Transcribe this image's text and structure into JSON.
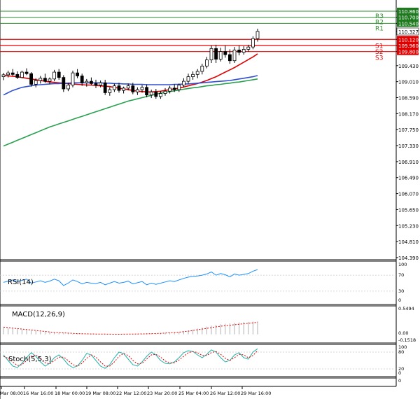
{
  "chart_data": {
    "type": "candlestick",
    "price_axis": {
      "ylim": [
        104.39,
        110.86
      ],
      "ticks": [
        "110.860",
        "110.700",
        "110.540",
        "110.327",
        "110.120",
        "109.960",
        "109.800",
        "109.430",
        "109.010",
        "108.590",
        "108.170",
        "107.750",
        "107.330",
        "106.910",
        "106.490",
        "106.070",
        "105.650",
        "105.230",
        "104.810",
        "104.390"
      ]
    },
    "current_price": "110.327",
    "levels": {
      "resistance": [
        {
          "label": "R3",
          "value": 110.86,
          "text": "110.860"
        },
        {
          "label": "R2",
          "value": 110.7,
          "text": "110.700"
        },
        {
          "label": "R1",
          "value": 110.54,
          "text": "110.540"
        }
      ],
      "support": [
        {
          "label": "S1",
          "value": 110.12,
          "text": "110.120"
        },
        {
          "label": "S2",
          "value": 109.96,
          "text": "109.960"
        },
        {
          "label": "S3",
          "value": 109.8,
          "text": "109.800"
        }
      ]
    },
    "time_labels": [
      "Mar 08:00",
      "16 Mar 16:00",
      "18 Mar 00:00",
      "19 Mar 08:00",
      "22 Mar 12:00",
      "23 Mar 20:00",
      "25 Mar 04:00",
      "26 Mar 12:00",
      "29 Mar 16:00"
    ],
    "candles": [
      [
        109.14,
        109.24,
        109.05,
        109.19
      ],
      [
        109.19,
        109.3,
        109.12,
        109.24
      ],
      [
        109.24,
        109.34,
        109.16,
        109.2
      ],
      [
        109.2,
        109.28,
        109.08,
        109.12
      ],
      [
        109.12,
        109.3,
        109.1,
        109.26
      ],
      [
        109.26,
        109.36,
        109.18,
        109.22
      ],
      [
        109.22,
        109.26,
        108.88,
        108.94
      ],
      [
        108.94,
        109.1,
        108.86,
        109.04
      ],
      [
        109.04,
        109.16,
        108.96,
        109.1
      ],
      [
        109.1,
        109.22,
        108.98,
        109.02
      ],
      [
        109.02,
        109.12,
        108.94,
        109.08
      ],
      [
        109.08,
        109.32,
        109.02,
        109.26
      ],
      [
        109.26,
        109.34,
        109.06,
        109.12
      ],
      [
        109.12,
        109.18,
        108.74,
        108.82
      ],
      [
        108.82,
        108.98,
        108.76,
        108.92
      ],
      [
        108.92,
        109.3,
        108.86,
        109.24
      ],
      [
        109.24,
        109.34,
        109.1,
        109.16
      ],
      [
        109.16,
        109.22,
        108.9,
        108.98
      ],
      [
        108.98,
        109.08,
        108.88,
        109.02
      ],
      [
        109.02,
        109.12,
        108.92,
        108.96
      ],
      [
        108.96,
        109.06,
        108.84,
        108.92
      ],
      [
        108.92,
        109.04,
        108.86,
        108.98
      ],
      [
        108.98,
        109.06,
        108.66,
        108.72
      ],
      [
        108.72,
        108.86,
        108.64,
        108.8
      ],
      [
        108.8,
        108.96,
        108.74,
        108.9
      ],
      [
        108.9,
        108.98,
        108.72,
        108.78
      ],
      [
        108.78,
        108.88,
        108.7,
        108.84
      ],
      [
        108.84,
        108.96,
        108.78,
        108.9
      ],
      [
        108.9,
        108.98,
        108.68,
        108.74
      ],
      [
        108.74,
        108.86,
        108.66,
        108.8
      ],
      [
        108.8,
        108.92,
        108.72,
        108.86
      ],
      [
        108.86,
        108.94,
        108.6,
        108.66
      ],
      [
        108.66,
        108.8,
        108.58,
        108.74
      ],
      [
        108.74,
        108.82,
        108.56,
        108.62
      ],
      [
        108.62,
        108.76,
        108.56,
        108.7
      ],
      [
        108.7,
        108.84,
        108.64,
        108.76
      ],
      [
        108.76,
        108.9,
        108.7,
        108.84
      ],
      [
        108.84,
        108.94,
        108.74,
        108.8
      ],
      [
        108.8,
        108.96,
        108.74,
        108.92
      ],
      [
        108.92,
        109.1,
        108.86,
        109.02
      ],
      [
        109.02,
        109.22,
        108.96,
        109.14
      ],
      [
        109.14,
        109.28,
        109.06,
        109.2
      ],
      [
        109.2,
        109.34,
        109.1,
        109.28
      ],
      [
        109.28,
        109.48,
        109.2,
        109.42
      ],
      [
        109.42,
        109.66,
        109.36,
        109.58
      ],
      [
        109.58,
        109.96,
        109.5,
        109.88
      ],
      [
        109.88,
        109.98,
        109.5,
        109.6
      ],
      [
        109.6,
        109.9,
        109.54,
        109.8
      ],
      [
        109.8,
        109.96,
        109.64,
        109.72
      ],
      [
        109.72,
        109.86,
        109.48,
        109.56
      ],
      [
        109.56,
        109.92,
        109.5,
        109.84
      ],
      [
        109.84,
        109.96,
        109.7,
        109.78
      ],
      [
        109.78,
        109.94,
        109.72,
        109.86
      ],
      [
        109.86,
        109.98,
        109.8,
        109.92
      ],
      [
        109.92,
        110.2,
        109.86,
        110.14
      ],
      [
        110.14,
        110.4,
        110.06,
        110.33
      ]
    ],
    "series": [
      {
        "name": "",
        "color": "#e00000",
        "values": [
          109.18,
          109.16,
          109.15,
          109.14,
          109.12,
          109.1,
          109.08,
          109.06,
          109.04,
          109.02,
          109.0,
          108.99,
          108.98,
          108.97,
          108.96,
          108.95,
          108.94,
          108.93,
          108.92,
          108.92,
          108.91,
          108.9,
          108.89,
          108.88,
          108.86,
          108.84,
          108.82,
          108.8,
          108.78,
          108.76,
          108.75,
          108.74,
          108.74,
          108.75,
          108.76,
          108.78,
          108.8,
          108.82,
          108.84,
          108.87,
          108.9,
          108.93,
          108.96,
          109.0,
          109.04,
          109.09,
          109.14,
          109.2,
          109.26,
          109.32,
          109.38,
          109.45,
          109.52,
          109.59,
          109.66,
          109.74
        ]
      },
      {
        "name": "",
        "color": "#3050d0",
        "values": [
          108.66,
          108.72,
          108.78,
          108.82,
          108.86,
          108.88,
          108.9,
          108.92,
          108.93,
          108.94,
          108.95,
          108.96,
          108.96,
          108.97,
          108.97,
          108.98,
          108.98,
          108.98,
          108.98,
          108.98,
          108.98,
          108.98,
          108.97,
          108.97,
          108.96,
          108.96,
          108.95,
          108.95,
          108.94,
          108.94,
          108.94,
          108.93,
          108.93,
          108.93,
          108.93,
          108.93,
          108.93,
          108.94,
          108.94,
          108.95,
          108.95,
          108.96,
          108.97,
          108.98,
          108.99,
          109.0,
          109.01,
          109.02,
          109.03,
          109.04,
          109.06,
          109.08,
          109.1,
          109.12,
          109.14,
          109.17
        ]
      },
      {
        "name": "",
        "color": "#2aa050",
        "values": [
          107.32,
          107.37,
          107.42,
          107.47,
          107.52,
          107.57,
          107.62,
          107.67,
          107.72,
          107.77,
          107.82,
          107.86,
          107.9,
          107.94,
          107.98,
          108.02,
          108.06,
          108.1,
          108.14,
          108.18,
          108.22,
          108.26,
          108.3,
          108.34,
          108.38,
          108.42,
          108.46,
          108.5,
          108.53,
          108.56,
          108.59,
          108.62,
          108.65,
          108.68,
          108.71,
          108.73,
          108.75,
          108.77,
          108.79,
          108.81,
          108.83,
          108.85,
          108.86,
          108.88,
          108.9,
          108.91,
          108.93,
          108.94,
          108.96,
          108.97,
          108.99,
          109.0,
          109.02,
          109.04,
          109.06,
          109.08
        ]
      }
    ],
    "rsi": {
      "label": "RSI(14)",
      "ylim": [
        0,
        100
      ],
      "ticks": [
        "100",
        "70",
        "30",
        "0"
      ],
      "values": [
        52,
        55,
        58,
        54,
        57,
        60,
        50,
        53,
        56,
        52,
        55,
        60,
        56,
        44,
        50,
        58,
        54,
        48,
        52,
        50,
        49,
        52,
        46,
        50,
        54,
        50,
        52,
        55,
        48,
        51,
        54,
        46,
        50,
        47,
        50,
        53,
        56,
        54,
        58,
        62,
        65,
        67,
        68,
        70,
        73,
        78,
        70,
        74,
        71,
        66,
        73,
        70,
        72,
        74,
        80,
        84
      ]
    },
    "macd": {
      "label": "MACD(12,26,9)",
      "ticks": [
        "0.5494",
        "0.00",
        "-0.1518"
      ],
      "ylim": [
        -0.1518,
        0.5494
      ],
      "histogram": [
        0.14,
        0.13,
        0.12,
        0.11,
        0.1,
        0.09,
        0.08,
        0.07,
        0.06,
        0.05,
        0.04,
        0.035,
        0.03,
        0.02,
        0.015,
        0.012,
        0.01,
        0.008,
        0.006,
        0.005,
        0.004,
        0.003,
        0.002,
        0.001,
        0.001,
        0.001,
        0.002,
        0.003,
        0.004,
        0.006,
        0.008,
        0.01,
        0.012,
        0.015,
        0.02,
        0.025,
        0.03,
        0.04,
        0.05,
        0.06,
        0.08,
        0.1,
        0.12,
        0.14,
        0.16,
        0.18,
        0.2,
        0.21,
        0.22,
        0.23,
        0.24,
        0.25,
        0.255,
        0.26,
        0.265,
        0.27
      ],
      "signal": [
        0.15,
        0.14,
        0.13,
        0.12,
        0.11,
        0.1,
        0.09,
        0.08,
        0.07,
        0.06,
        0.05,
        0.04,
        0.035,
        0.03,
        0.025,
        0.02,
        0.015,
        0.012,
        0.01,
        0.008,
        0.006,
        0.005,
        0.004,
        0.003,
        0.002,
        0.002,
        0.003,
        0.004,
        0.005,
        0.007,
        0.009,
        0.011,
        0.014,
        0.017,
        0.021,
        0.026,
        0.032,
        0.038,
        0.046,
        0.055,
        0.066,
        0.08,
        0.095,
        0.11,
        0.125,
        0.14,
        0.155,
        0.17,
        0.18,
        0.19,
        0.2,
        0.21,
        0.22,
        0.23,
        0.24,
        0.25
      ]
    },
    "stoch": {
      "label": "Stoch(5,5,3)",
      "ylim": [
        0,
        100
      ],
      "ticks": [
        "100",
        "80",
        "20",
        "0"
      ],
      "main": [
        70,
        50,
        30,
        25,
        40,
        60,
        78,
        65,
        45,
        30,
        40,
        60,
        70,
        55,
        35,
        25,
        30,
        50,
        75,
        70,
        50,
        30,
        22,
        35,
        60,
        80,
        75,
        55,
        35,
        30,
        45,
        65,
        80,
        70,
        50,
        40,
        38,
        45,
        60,
        78,
        85,
        82,
        70,
        60,
        72,
        88,
        80,
        60,
        45,
        50,
        70,
        78,
        60,
        55,
        80,
        92
      ],
      "signal": [
        65,
        58,
        45,
        32,
        35,
        50,
        65,
        70,
        58,
        42,
        38,
        50,
        62,
        62,
        50,
        35,
        30,
        40,
        58,
        70,
        62,
        45,
        30,
        30,
        45,
        65,
        75,
        68,
        50,
        38,
        40,
        55,
        70,
        72,
        62,
        48,
        42,
        42,
        52,
        65,
        78,
        82,
        78,
        68,
        68,
        78,
        82,
        72,
        58,
        50,
        60,
        72,
        70,
        60,
        68,
        85
      ]
    }
  }
}
